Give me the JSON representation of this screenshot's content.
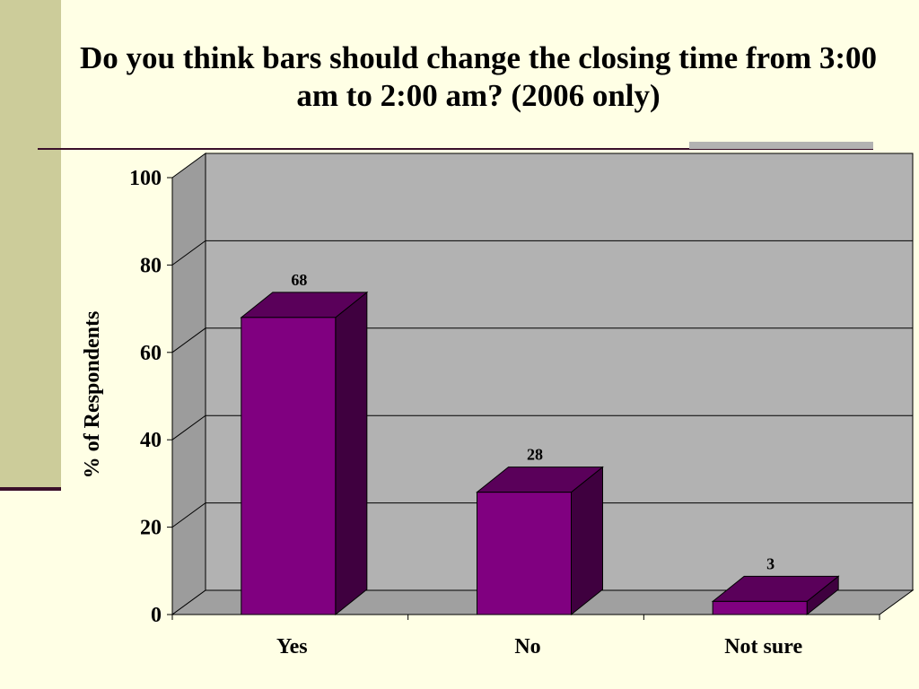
{
  "slide": {
    "title": "Do you think bars should change the closing time from 3:00 am to 2:00 am? (2006 only)"
  },
  "colors": {
    "background": "#FFFFE5",
    "sidebar": "#CCCC9A",
    "rule": "#3A0F2A",
    "plot_wall": "#B2B2B2",
    "bar_front": "#800080",
    "bar_top": "#5A005A",
    "bar_side": "#3F003F"
  },
  "chart_data": {
    "type": "bar",
    "categories": [
      "Yes",
      "No",
      "Not sure"
    ],
    "values": [
      68,
      28,
      3
    ],
    "data_labels": [
      "68",
      "28",
      "3"
    ],
    "title": "Do you think bars should change the closing time from 3:00 am to 2:00 am? (2006 only)",
    "xlabel": "",
    "ylabel": "% of Respondents",
    "ylim": [
      0,
      100
    ],
    "yticks": [
      0,
      20,
      40,
      60,
      80,
      100
    ],
    "grid": true,
    "legend": "none",
    "style": "3d"
  }
}
